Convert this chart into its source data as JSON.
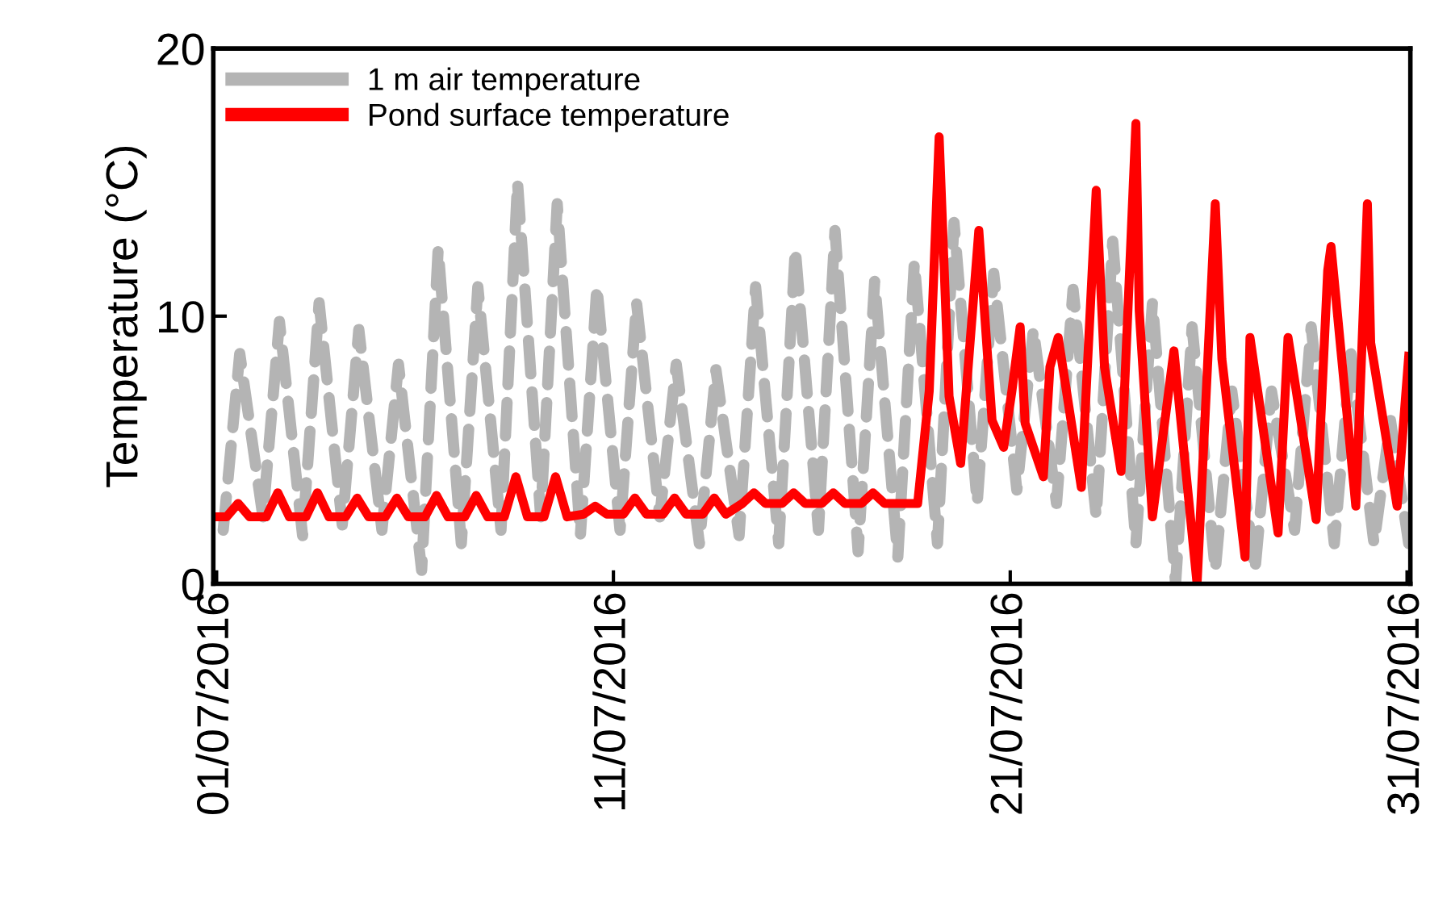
{
  "chart_data": {
    "type": "line",
    "ylabel": "Temperature (°C)",
    "xlim": [
      "2016-06-30T22:00",
      "2016-07-31T02:00"
    ],
    "xticks": [
      {
        "value": "2016-07-01",
        "label": "01/07/2016"
      },
      {
        "value": "2016-07-11",
        "label": "11/07/2016"
      },
      {
        "value": "2016-07-21",
        "label": "21/07/2016"
      },
      {
        "value": "2016-07-31",
        "label": "31/07/2016"
      }
    ],
    "ylim": [
      0,
      20
    ],
    "yticks": [
      0,
      10,
      20
    ],
    "grid": false,
    "legend": "top left",
    "series": [
      {
        "name": "1 m air temperature",
        "color": "#b4b4b4",
        "line_style": "dashed",
        "x": [
          "2016-07-01T04:00",
          "2016-07-01T14:00",
          "2016-07-02T04:00",
          "2016-07-02T14:00",
          "2016-07-03T04:00",
          "2016-07-03T14:00",
          "2016-07-04T04:00",
          "2016-07-04T14:00",
          "2016-07-05T04:00",
          "2016-07-05T14:00",
          "2016-07-06T04:00",
          "2016-07-06T14:00",
          "2016-07-07T04:00",
          "2016-07-07T14:00",
          "2016-07-08T04:00",
          "2016-07-08T14:00",
          "2016-07-09T04:00",
          "2016-07-09T14:00",
          "2016-07-10T04:00",
          "2016-07-10T14:00",
          "2016-07-11T04:00",
          "2016-07-11T14:00",
          "2016-07-12T04:00",
          "2016-07-12T14:00",
          "2016-07-13T04:00",
          "2016-07-13T14:00",
          "2016-07-14T04:00",
          "2016-07-14T14:00",
          "2016-07-15T04:00",
          "2016-07-15T14:00",
          "2016-07-16T04:00",
          "2016-07-16T14:00",
          "2016-07-17T04:00",
          "2016-07-17T14:00",
          "2016-07-18T04:00",
          "2016-07-18T14:00",
          "2016-07-19T04:00",
          "2016-07-19T14:00",
          "2016-07-20T04:00",
          "2016-07-20T14:00",
          "2016-07-21T04:00",
          "2016-07-21T14:00",
          "2016-07-22T04:00",
          "2016-07-22T14:00",
          "2016-07-23T04:00",
          "2016-07-23T14:00",
          "2016-07-24T04:00",
          "2016-07-24T14:00",
          "2016-07-25T04:00",
          "2016-07-25T14:00",
          "2016-07-26T04:00",
          "2016-07-26T14:00",
          "2016-07-27T04:00",
          "2016-07-27T14:00",
          "2016-07-28T04:00",
          "2016-07-28T14:00",
          "2016-07-29T04:00",
          "2016-07-29T14:00",
          "2016-07-30T04:00",
          "2016-07-30T14:00",
          "2016-07-31T01:00"
        ],
        "values": [
          2.0,
          8.6,
          2.5,
          9.8,
          1.8,
          10.5,
          2.2,
          9.5,
          2.0,
          8.2,
          0.5,
          12.5,
          1.5,
          11.1,
          2.0,
          15.0,
          2.5,
          14.2,
          1.8,
          11.1,
          2.0,
          10.5,
          2.5,
          8.2,
          1.5,
          8.0,
          1.8,
          11.1,
          1.5,
          12.5,
          2.0,
          13.2,
          1.2,
          11.3,
          1.0,
          12.0,
          1.5,
          13.5,
          3.0,
          11.6,
          3.5,
          9.5,
          3.0,
          11.0,
          2.5,
          12.8,
          1.5,
          10.5,
          0.0,
          9.6,
          0.5,
          7.2,
          0.5,
          7.2,
          2.0,
          9.6,
          1.5,
          8.6,
          1.5,
          6.1,
          1.5
        ]
      },
      {
        "name": "Pond surface temperature",
        "color": "#ff0000",
        "line_style": "solid",
        "x": [
          "2016-07-01T00:00",
          "2016-07-01T06:00",
          "2016-07-01T13:00",
          "2016-07-01T20:00",
          "2016-07-02T06:00",
          "2016-07-02T13:00",
          "2016-07-02T20:00",
          "2016-07-03T06:00",
          "2016-07-03T13:00",
          "2016-07-03T20:00",
          "2016-07-04T06:00",
          "2016-07-04T13:00",
          "2016-07-04T20:00",
          "2016-07-05T06:00",
          "2016-07-05T13:00",
          "2016-07-05T20:00",
          "2016-07-06T06:00",
          "2016-07-06T13:00",
          "2016-07-06T20:00",
          "2016-07-07T06:00",
          "2016-07-07T13:00",
          "2016-07-07T20:00",
          "2016-07-08T06:00",
          "2016-07-08T13:00",
          "2016-07-08T20:00",
          "2016-07-09T06:00",
          "2016-07-09T13:00",
          "2016-07-09T20:00",
          "2016-07-10T06:00",
          "2016-07-10T13:00",
          "2016-07-10T20:00",
          "2016-07-11T06:00",
          "2016-07-11T13:00",
          "2016-07-11T20:00",
          "2016-07-12T06:00",
          "2016-07-12T13:00",
          "2016-07-12T20:00",
          "2016-07-13T06:00",
          "2016-07-13T13:00",
          "2016-07-13T20:00",
          "2016-07-14T06:00",
          "2016-07-14T13:00",
          "2016-07-14T20:00",
          "2016-07-15T06:00",
          "2016-07-15T13:00",
          "2016-07-15T20:00",
          "2016-07-16T06:00",
          "2016-07-16T13:00",
          "2016-07-16T20:00",
          "2016-07-17T06:00",
          "2016-07-17T13:00",
          "2016-07-17T20:00",
          "2016-07-18T06:00",
          "2016-07-18T16:00",
          "2016-07-18T23:00",
          "2016-07-19T05:00",
          "2016-07-19T11:00",
          "2016-07-19T18:00",
          "2016-07-20T05:00",
          "2016-07-20T13:00",
          "2016-07-20T20:00",
          "2016-07-21T01:00",
          "2016-07-21T06:00",
          "2016-07-21T09:00",
          "2016-07-21T20:00",
          "2016-07-22T00:00",
          "2016-07-22T05:00",
          "2016-07-22T19:00",
          "2016-07-23T04:00",
          "2016-07-23T09:00",
          "2016-07-23T19:00",
          "2016-07-24T04:00",
          "2016-07-24T06:00",
          "2016-07-24T14:00",
          "2016-07-25T03:00",
          "2016-07-25T17:00",
          "2016-07-26T04:00",
          "2016-07-26T08:00",
          "2016-07-26T22:00",
          "2016-07-27T01:00",
          "2016-07-27T18:00",
          "2016-07-28T00:00",
          "2016-07-28T17:00",
          "2016-07-29T00:00",
          "2016-07-29T02:00",
          "2016-07-29T17:00",
          "2016-07-30T00:00",
          "2016-07-30T02:00",
          "2016-07-30T18:00",
          "2016-07-31T01:00"
        ],
        "values": [
          2.5,
          2.5,
          3.0,
          2.5,
          2.5,
          3.4,
          2.5,
          2.5,
          3.4,
          2.5,
          2.5,
          3.2,
          2.5,
          2.5,
          3.2,
          2.5,
          2.5,
          3.3,
          2.5,
          2.5,
          3.3,
          2.5,
          2.5,
          4.0,
          2.5,
          2.5,
          4.0,
          2.5,
          2.6,
          2.9,
          2.6,
          2.6,
          3.2,
          2.6,
          2.6,
          3.2,
          2.6,
          2.6,
          3.2,
          2.6,
          3.0,
          3.4,
          3.0,
          3.0,
          3.4,
          3.0,
          3.0,
          3.4,
          3.0,
          3.0,
          3.4,
          3.0,
          3.0,
          3.0,
          7.2,
          16.7,
          7.0,
          4.5,
          13.2,
          6.1,
          5.1,
          7.2,
          9.6,
          6.0,
          4.0,
          8.1,
          9.2,
          3.6,
          14.7,
          8.1,
          4.2,
          17.2,
          10.2,
          2.5,
          8.7,
          0.0,
          14.2,
          8.4,
          1.0,
          9.2,
          1.9,
          9.2,
          2.4,
          11.7,
          12.6,
          2.9,
          14.2,
          9.0,
          2.9,
          8.5
        ]
      }
    ]
  }
}
